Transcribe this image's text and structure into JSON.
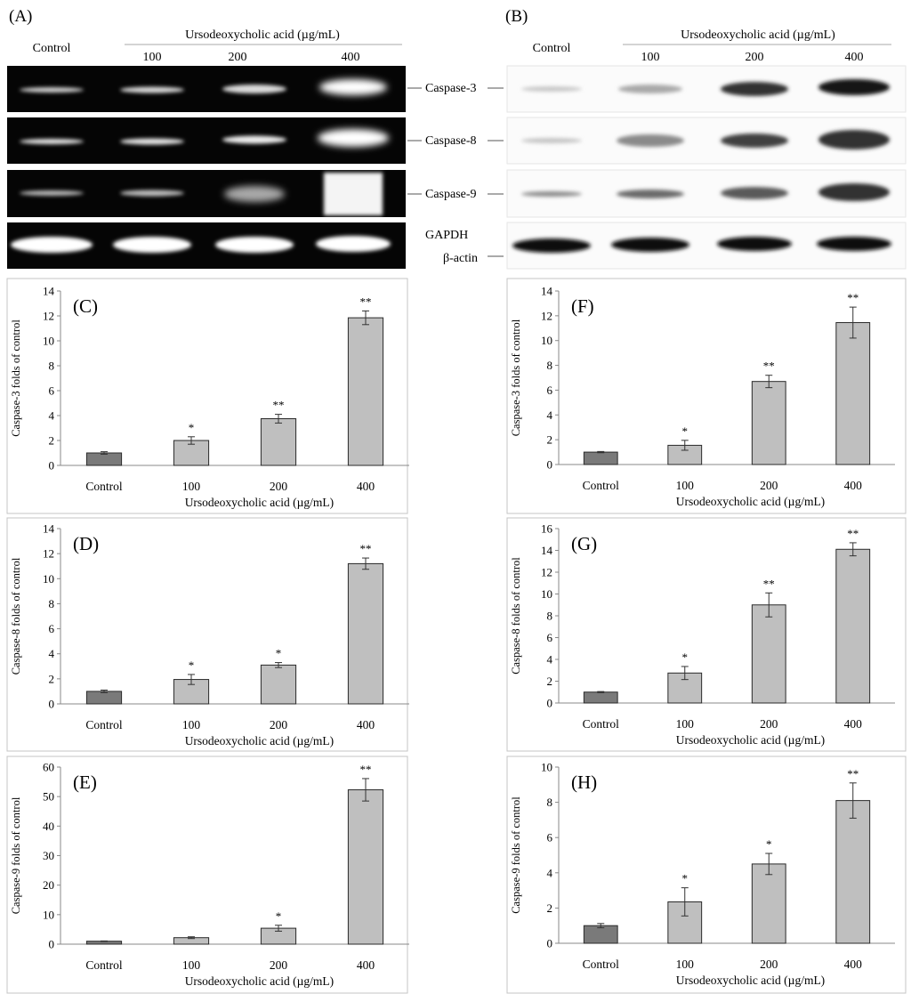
{
  "blots": {
    "A": {
      "letter": "(A)",
      "control_label": "Control",
      "treatment_label": "Ursodeoxycholic acid (µg/mL)",
      "doses": [
        "100",
        "200",
        "400"
      ],
      "labels": [
        "Caspase-3",
        "Caspase-8",
        "Caspase-9",
        "GAPDH"
      ]
    },
    "B": {
      "letter": "(B)",
      "control_label": "Control",
      "treatment_label": "Ursodeoxycholic acid (µg/mL)",
      "doses": [
        "100",
        "200",
        "400"
      ],
      "labels": [
        "Caspase-3",
        "Caspase-8",
        "Caspase-9",
        "β-actin"
      ]
    }
  },
  "chart_data": [
    {
      "id": "C",
      "type": "bar",
      "letter": "(C)",
      "categories": [
        "Control",
        "100",
        "200",
        "400"
      ],
      "values": [
        1.0,
        2.0,
        3.75,
        11.85
      ],
      "errors": [
        0.1,
        0.3,
        0.35,
        0.55
      ],
      "significance": [
        "",
        "*",
        "**",
        "**"
      ],
      "ylabel": "Caspase-3 folds of control",
      "xlabel": "Ursodeoxycholic acid (µg/mL)",
      "ylim": [
        0,
        14
      ],
      "yticks": [
        0,
        2,
        4,
        6,
        8,
        10,
        12,
        14
      ],
      "bar_colors": [
        "#7a7a7a",
        "#bfbfbf",
        "#bfbfbf",
        "#bfbfbf"
      ]
    },
    {
      "id": "F",
      "type": "bar",
      "letter": "(F)",
      "categories": [
        "Control",
        "100",
        "200",
        "400"
      ],
      "values": [
        1.0,
        1.55,
        6.7,
        11.45
      ],
      "errors": [
        0.05,
        0.4,
        0.5,
        1.25
      ],
      "significance": [
        "",
        "*",
        "**",
        "**"
      ],
      "ylabel": "Caspase-3 folds of control",
      "xlabel": "Ursodeoxycholic acid (µg/mL)",
      "ylim": [
        0,
        14
      ],
      "yticks": [
        0,
        2,
        4,
        6,
        8,
        10,
        12,
        14
      ],
      "bar_colors": [
        "#7a7a7a",
        "#bfbfbf",
        "#bfbfbf",
        "#bfbfbf"
      ]
    },
    {
      "id": "D",
      "type": "bar",
      "letter": "(D)",
      "categories": [
        "Control",
        "100",
        "200",
        "400"
      ],
      "values": [
        1.0,
        1.95,
        3.1,
        11.2
      ],
      "errors": [
        0.1,
        0.4,
        0.2,
        0.45
      ],
      "significance": [
        "",
        "*",
        "*",
        "**"
      ],
      "ylabel": "Caspase-8 folds of control",
      "xlabel": "Ursodeoxycholic acid (µg/mL)",
      "ylim": [
        0,
        14
      ],
      "yticks": [
        0,
        2,
        4,
        6,
        8,
        10,
        12,
        14
      ],
      "bar_colors": [
        "#7a7a7a",
        "#bfbfbf",
        "#bfbfbf",
        "#bfbfbf"
      ]
    },
    {
      "id": "G",
      "type": "bar",
      "letter": "(G)",
      "categories": [
        "Control",
        "100",
        "200",
        "400"
      ],
      "values": [
        1.0,
        2.75,
        9.0,
        14.1
      ],
      "errors": [
        0.05,
        0.6,
        1.1,
        0.6
      ],
      "significance": [
        "",
        "*",
        "**",
        "**"
      ],
      "ylabel": "Caspase-8 folds of control",
      "xlabel": "Ursodeoxycholic acid (µg/mL)",
      "ylim": [
        0,
        16
      ],
      "yticks": [
        0,
        2,
        4,
        6,
        8,
        10,
        12,
        14,
        16
      ],
      "bar_colors": [
        "#7a7a7a",
        "#bfbfbf",
        "#bfbfbf",
        "#bfbfbf"
      ]
    },
    {
      "id": "E",
      "type": "bar",
      "letter": "(E)",
      "categories": [
        "Control",
        "100",
        "200",
        "400"
      ],
      "values": [
        1.0,
        2.2,
        5.4,
        52.3
      ],
      "errors": [
        0.1,
        0.3,
        1.0,
        3.8
      ],
      "significance": [
        "",
        "",
        "*",
        "**"
      ],
      "ylabel": "Caspase-9 folds of control",
      "xlabel": "Ursodeoxycholic acid (µg/mL)",
      "ylim": [
        0,
        60
      ],
      "yticks": [
        0,
        10,
        20,
        30,
        40,
        50,
        60
      ],
      "bar_colors": [
        "#7a7a7a",
        "#bfbfbf",
        "#bfbfbf",
        "#bfbfbf"
      ]
    },
    {
      "id": "H",
      "type": "bar",
      "letter": "(H)",
      "categories": [
        "Control",
        "100",
        "200",
        "400"
      ],
      "values": [
        1.0,
        2.35,
        4.5,
        8.1
      ],
      "errors": [
        0.12,
        0.8,
        0.6,
        1.0
      ],
      "significance": [
        "",
        "*",
        "*",
        "**"
      ],
      "ylabel": "Caspase-9 folds of control",
      "xlabel": "Ursodeoxycholic acid (µg/mL)",
      "ylim": [
        0,
        10
      ],
      "yticks": [
        0,
        2,
        4,
        6,
        8,
        10
      ],
      "bar_colors": [
        "#7a7a7a",
        "#bfbfbf",
        "#bfbfbf",
        "#bfbfbf"
      ]
    }
  ]
}
